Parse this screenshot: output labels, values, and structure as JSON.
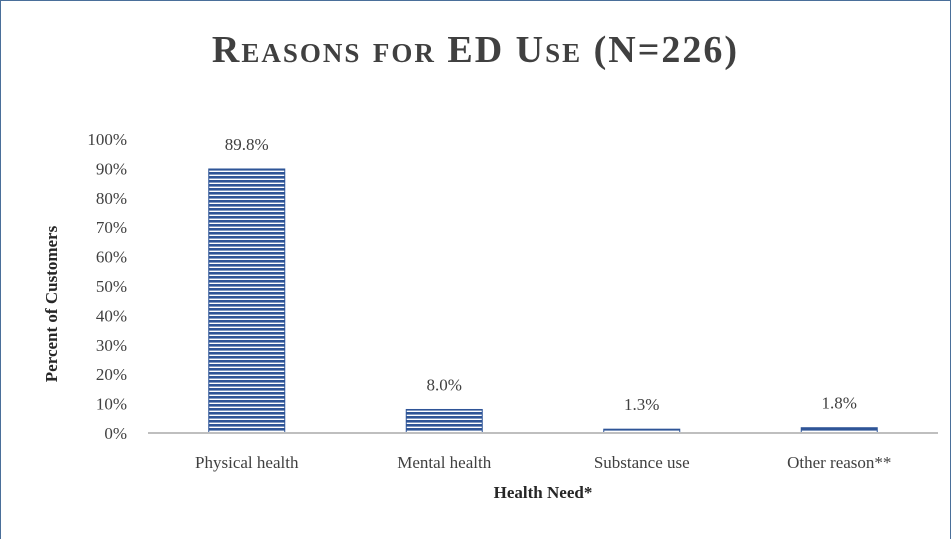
{
  "chart_data": {
    "type": "bar",
    "title": "Reasons for ED Use (N=226)",
    "xlabel": "Health Need*",
    "ylabel": "Percent of Customers",
    "categories": [
      "Physical health",
      "Mental health",
      "Substance use",
      "Other reason**"
    ],
    "values": [
      89.8,
      8.0,
      1.3,
      1.8
    ],
    "data_labels": [
      "89.8%",
      "8.0%",
      "1.3%",
      "1.8%"
    ],
    "ylim": [
      0,
      100
    ],
    "yticks": [
      0,
      10,
      20,
      30,
      40,
      50,
      60,
      70,
      80,
      90,
      100
    ],
    "ytick_labels": [
      "0%",
      "10%",
      "20%",
      "30%",
      "40%",
      "50%",
      "60%",
      "70%",
      "80%",
      "90%",
      "100%"
    ],
    "grid": false,
    "legend": "none",
    "bar_color": "#2f5597",
    "bar_pattern": "horizontal-stripes"
  }
}
